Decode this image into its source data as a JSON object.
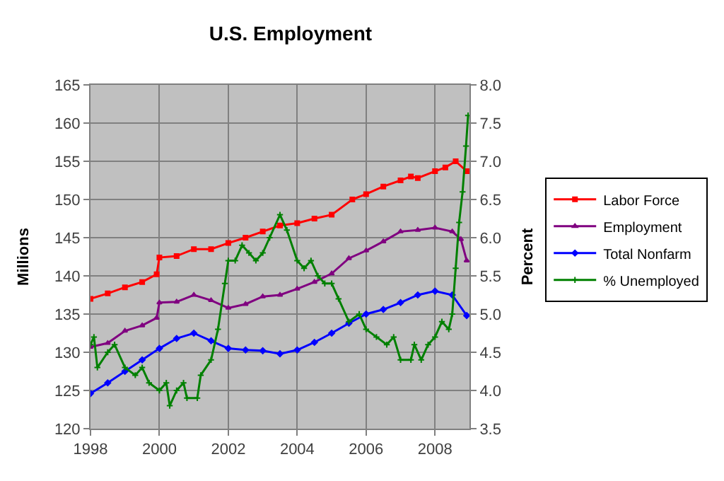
{
  "chart_data": {
    "type": "line",
    "title": "U.S. Employment",
    "ylabel": "Millions",
    "y2label": "Percent",
    "xlim": [
      1998,
      2009
    ],
    "xticks": [
      1998,
      2000,
      2002,
      2004,
      2006,
      2008
    ],
    "ylim": [
      120,
      165
    ],
    "yticks": [
      120,
      125,
      130,
      135,
      140,
      145,
      150,
      155,
      160,
      165
    ],
    "y2lim": [
      3.5,
      8.0
    ],
    "y2ticks": [
      {
        "value": 3.5,
        "label": "3.5"
      },
      {
        "value": 4,
        "label": "4.0"
      },
      {
        "value": 4.5,
        "label": "4.5"
      },
      {
        "value": 5,
        "label": "5.0"
      },
      {
        "value": 5.5,
        "label": "5.5"
      },
      {
        "value": 6,
        "label": "6.0"
      },
      {
        "value": 6.5,
        "label": "6.5"
      },
      {
        "value": 7,
        "label": "7.0"
      },
      {
        "value": 7.5,
        "label": "7.5"
      },
      {
        "value": 8,
        "label": "8.0"
      }
    ],
    "grid": true,
    "legend": "right",
    "line_style": "solid",
    "series": [
      {
        "name": "Labor Force",
        "color": "#ff0000",
        "marker": "square",
        "x": [
          1998,
          1998.5,
          1999,
          1999.5,
          1999.92,
          2000,
          2000.5,
          2001,
          2001.5,
          2002,
          2002.5,
          2003,
          2003.5,
          2004,
          2004.5,
          2005,
          2005.6,
          2006,
          2006.5,
          2007,
          2007.3,
          2007.5,
          2008,
          2008.3,
          2008.6,
          2008.92
        ],
        "values": [
          137,
          137.7,
          138.5,
          139.2,
          140.2,
          142.4,
          142.6,
          143.5,
          143.5,
          144.3,
          145,
          145.8,
          146.6,
          146.9,
          147.5,
          148,
          150,
          150.7,
          151.7,
          152.5,
          153,
          152.8,
          153.7,
          154.2,
          155,
          153.7
        ]
      },
      {
        "name": "Employment",
        "color": "#800080",
        "marker": "triangle",
        "x": [
          1998,
          1998.5,
          1999,
          1999.5,
          1999.92,
          2000,
          2000.5,
          2001,
          2001.5,
          2002,
          2002.5,
          2003,
          2003.5,
          2004,
          2004.5,
          2005,
          2005.5,
          2006,
          2006.5,
          2007,
          2007.5,
          2008,
          2008.5,
          2008.75,
          2008.92
        ],
        "values": [
          130.7,
          131.2,
          132.8,
          133.5,
          134.5,
          136.5,
          136.6,
          137.5,
          136.8,
          135.8,
          136.3,
          137.3,
          137.5,
          138.3,
          139.2,
          140.3,
          142.3,
          143.3,
          144.5,
          145.8,
          146,
          146.3,
          145.8,
          144.8,
          142
        ]
      },
      {
        "name": "Total Nonfarm",
        "color": "#0000ff",
        "marker": "diamond",
        "x": [
          1998,
          1998.5,
          1999,
          1999.5,
          2000,
          2000.5,
          2001,
          2001.5,
          2002,
          2002.5,
          2003,
          2003.5,
          2004,
          2004.5,
          2005,
          2005.5,
          2006,
          2006.5,
          2007,
          2007.5,
          2008,
          2008.5,
          2008.92
        ],
        "values": [
          124.6,
          126,
          127.5,
          129,
          130.5,
          131.8,
          132.5,
          131.5,
          130.5,
          130.3,
          130.2,
          129.8,
          130.3,
          131.3,
          132.5,
          133.8,
          135,
          135.6,
          136.5,
          137.5,
          138,
          137.5,
          134.8
        ]
      },
      {
        "name": "% Unemployed",
        "color": "#008000",
        "marker": "cross",
        "axis": "y2",
        "x": [
          1998,
          1998.1,
          1998.2,
          1998.5,
          1998.7,
          1999,
          1999.3,
          1999.5,
          1999.7,
          2000,
          2000.2,
          2000.3,
          2000.5,
          2000.7,
          2000.8,
          2001.1,
          2001.2,
          2001.5,
          2001.7,
          2001.9,
          2002,
          2002.2,
          2002.4,
          2002.6,
          2002.8,
          2003,
          2003.2,
          2003.5,
          2003.7,
          2004,
          2004.2,
          2004.4,
          2004.6,
          2004.8,
          2005,
          2005.2,
          2005.5,
          2005.8,
          2006,
          2006.3,
          2006.6,
          2006.8,
          2007,
          2007.3,
          2007.4,
          2007.6,
          2007.8,
          2008,
          2008.2,
          2008.4,
          2008.5,
          2008.6,
          2008.7,
          2008.8,
          2008.9,
          2008.96
        ],
        "values": [
          4.6,
          4.7,
          4.3,
          4.5,
          4.6,
          4.3,
          4.2,
          4.3,
          4.1,
          4.0,
          4.1,
          3.8,
          4.0,
          4.1,
          3.9,
          3.9,
          4.2,
          4.4,
          4.8,
          5.4,
          5.7,
          5.7,
          5.9,
          5.8,
          5.7,
          5.8,
          6.0,
          6.3,
          6.1,
          5.7,
          5.6,
          5.7,
          5.5,
          5.4,
          5.4,
          5.2,
          4.9,
          5.0,
          4.8,
          4.7,
          4.6,
          4.7,
          4.4,
          4.4,
          4.6,
          4.4,
          4.6,
          4.7,
          4.9,
          4.8,
          5.0,
          5.6,
          6.2,
          6.6,
          7.2,
          7.6
        ]
      }
    ]
  }
}
